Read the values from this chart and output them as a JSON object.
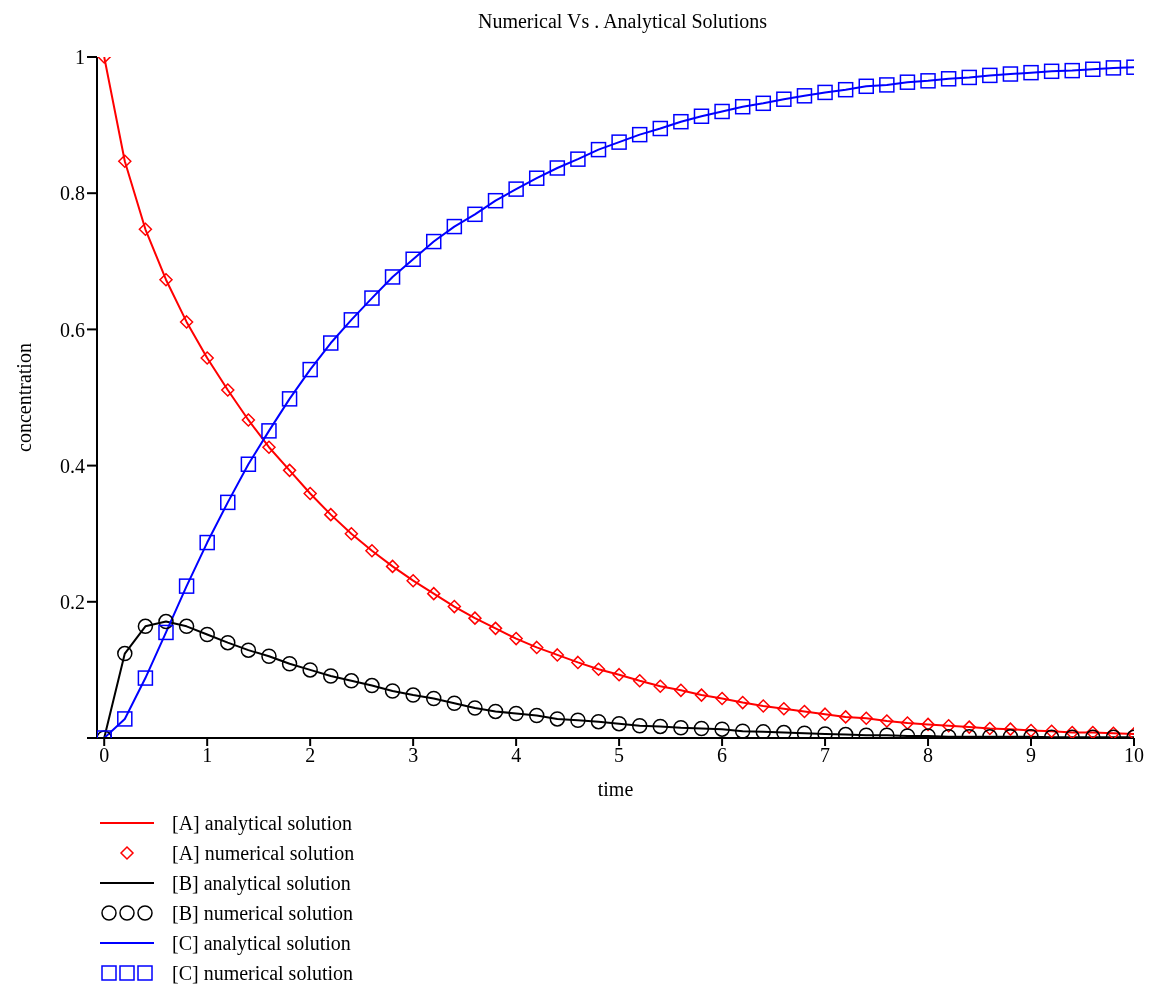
{
  "chart_data": {
    "type": "line",
    "title": "Numerical  Vs . Analytical  Solutions",
    "xlabel": "time",
    "ylabel": "concentration",
    "x": [
      0,
      0.2,
      0.4,
      0.6,
      0.8,
      1,
      1.2,
      1.4,
      1.6,
      1.8,
      2,
      2.2,
      2.4,
      2.6,
      2.8,
      3,
      3.2,
      3.4,
      3.6,
      3.8,
      4,
      4.2,
      4.4,
      4.6,
      4.8,
      5,
      5.2,
      5.4,
      5.6,
      5.8,
      6,
      6.2,
      6.4,
      6.6,
      6.8,
      7,
      7.2,
      7.4,
      7.6,
      7.8,
      8,
      8.2,
      8.4,
      8.6,
      8.8,
      9,
      9.2,
      9.4,
      9.6,
      9.8,
      10
    ],
    "xlim": [
      -0.07,
      10
    ],
    "xticks": [
      0,
      1,
      2,
      3,
      4,
      5,
      6,
      7,
      8,
      9,
      10
    ],
    "ylim": [
      0,
      1
    ],
    "yticks": [
      {
        "value": 0,
        "label": null
      },
      0.2,
      0.4,
      0.6,
      0.8,
      1
    ],
    "legend": "bottom left",
    "series": [
      {
        "name": "[A] analytical solution",
        "color": "#ff0000",
        "values": [
          1,
          0.847,
          0.747,
          0.673,
          0.611,
          0.558,
          0.511,
          0.467,
          0.427,
          0.393,
          0.359,
          0.328,
          0.3,
          0.275,
          0.252,
          0.231,
          0.212,
          0.193,
          0.176,
          0.161,
          0.146,
          0.133,
          0.122,
          0.111,
          0.101,
          0.093,
          0.084,
          0.076,
          0.07,
          0.063,
          0.058,
          0.052,
          0.047,
          0.043,
          0.039,
          0.035,
          0.031,
          0.029,
          0.025,
          0.022,
          0.02,
          0.018,
          0.016,
          0.014,
          0.013,
          0.011,
          0.01,
          0.008,
          0.008,
          0.007,
          0.006
        ]
      },
      {
        "name": "[A] numerical solution",
        "type": "scatter",
        "marker": "diamond",
        "color": "#ff0000",
        "values": [
          1,
          0.847,
          0.747,
          0.673,
          0.611,
          0.558,
          0.511,
          0.467,
          0.427,
          0.393,
          0.359,
          0.328,
          0.3,
          0.275,
          0.252,
          0.231,
          0.212,
          0.193,
          0.176,
          0.161,
          0.146,
          0.133,
          0.122,
          0.111,
          0.101,
          0.093,
          0.084,
          0.076,
          0.07,
          0.063,
          0.058,
          0.052,
          0.047,
          0.043,
          0.039,
          0.035,
          0.031,
          0.029,
          0.025,
          0.022,
          0.02,
          0.018,
          0.016,
          0.014,
          0.013,
          0.011,
          0.01,
          0.008,
          0.008,
          0.007,
          0.006
        ]
      },
      {
        "name": "[B] analytical solution",
        "color": "#000000",
        "values": [
          0,
          0.124,
          0.164,
          0.171,
          0.164,
          0.152,
          0.14,
          0.129,
          0.12,
          0.109,
          0.1,
          0.091,
          0.084,
          0.077,
          0.069,
          0.063,
          0.058,
          0.051,
          0.044,
          0.039,
          0.036,
          0.033,
          0.028,
          0.026,
          0.024,
          0.021,
          0.018,
          0.017,
          0.015,
          0.014,
          0.013,
          0.01,
          0.009,
          0.008,
          0.007,
          0.006,
          0.005,
          0.004,
          0.004,
          0.003,
          0.003,
          0.002,
          0.002,
          0.002,
          0.002,
          0.002,
          0.001,
          0.001,
          0.001,
          0.001,
          0.001
        ]
      },
      {
        "name": "[B] numerical solution",
        "type": "scatter",
        "marker": "circle",
        "color": "#000000",
        "values": [
          0,
          0.124,
          0.164,
          0.171,
          0.164,
          0.152,
          0.14,
          0.129,
          0.12,
          0.109,
          0.1,
          0.091,
          0.084,
          0.077,
          0.069,
          0.063,
          0.058,
          0.051,
          0.044,
          0.039,
          0.036,
          0.033,
          0.028,
          0.026,
          0.024,
          0.021,
          0.018,
          0.017,
          0.015,
          0.014,
          0.013,
          0.01,
          0.009,
          0.008,
          0.007,
          0.006,
          0.005,
          0.004,
          0.004,
          0.003,
          0.003,
          0.002,
          0.002,
          0.002,
          0.002,
          0.002,
          0.001,
          0.001,
          0.001,
          0.001,
          0.001
        ]
      },
      {
        "name": "[C] analytical solution",
        "color": "#0000ff",
        "values": [
          0,
          0.028,
          0.088,
          0.155,
          0.223,
          0.287,
          0.346,
          0.402,
          0.451,
          0.498,
          0.541,
          0.58,
          0.614,
          0.646,
          0.677,
          0.703,
          0.729,
          0.751,
          0.769,
          0.789,
          0.806,
          0.822,
          0.837,
          0.85,
          0.864,
          0.875,
          0.886,
          0.895,
          0.905,
          0.913,
          0.92,
          0.927,
          0.932,
          0.938,
          0.943,
          0.948,
          0.952,
          0.957,
          0.959,
          0.963,
          0.965,
          0.968,
          0.97,
          0.973,
          0.975,
          0.977,
          0.979,
          0.98,
          0.982,
          0.984,
          0.985
        ]
      },
      {
        "name": "[C] numerical solution",
        "type": "scatter",
        "marker": "square",
        "color": "#0000ff",
        "values": [
          0,
          0.028,
          0.088,
          0.155,
          0.223,
          0.287,
          0.346,
          0.402,
          0.451,
          0.498,
          0.541,
          0.58,
          0.614,
          0.646,
          0.677,
          0.703,
          0.729,
          0.751,
          0.769,
          0.789,
          0.806,
          0.822,
          0.837,
          0.85,
          0.864,
          0.875,
          0.886,
          0.895,
          0.905,
          0.913,
          0.92,
          0.927,
          0.932,
          0.938,
          0.943,
          0.948,
          0.952,
          0.957,
          0.959,
          0.963,
          0.965,
          0.968,
          0.97,
          0.973,
          0.975,
          0.977,
          0.979,
          0.98,
          0.982,
          0.984,
          0.985
        ]
      }
    ]
  }
}
